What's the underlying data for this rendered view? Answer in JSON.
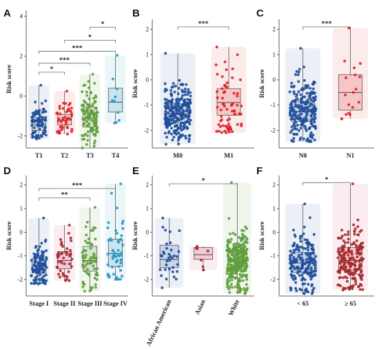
{
  "figure": {
    "panels": [
      {
        "letter": "A",
        "ylabel": "Risk score",
        "ylim": [
          -2.6,
          4.3
        ],
        "yticks": [
          -2,
          0,
          2,
          4
        ],
        "categories": [
          "T1",
          "T2",
          "T3",
          "T4"
        ],
        "colors": [
          "#1f4e9a",
          "#e0212a",
          "#5f9e3c",
          "#2f95c4"
        ],
        "fills": [
          "#c9d4e6",
          "#f6c6c6",
          "#d8e6cc",
          "#c7e4ef"
        ],
        "boxes": [
          {
            "q1": -1.72,
            "median": -1.43,
            "q3": -1.08,
            "lo": -2.15,
            "hi": 0.55,
            "n": 80,
            "spread": 0.55
          },
          {
            "q1": -1.45,
            "median": -1.2,
            "q3": -0.92,
            "lo": -1.9,
            "hi": 0.25,
            "n": 45,
            "spread": 0.6
          },
          {
            "q1": -1.55,
            "median": -1.12,
            "q3": -0.55,
            "lo": -2.6,
            "hi": 1.1,
            "n": 110,
            "spread": 0.65
          },
          {
            "q1": -0.8,
            "median": -0.3,
            "q3": 0.4,
            "lo": -1.35,
            "hi": 2.05,
            "n": 10,
            "spread": 0.35
          }
        ],
        "comparisons": [
          {
            "from": 0,
            "to": 1,
            "label": "*",
            "y": 1.2
          },
          {
            "from": 0,
            "to": 2,
            "label": "***",
            "y": 1.65
          },
          {
            "from": 0,
            "to": 3,
            "label": "***",
            "y": 2.25
          },
          {
            "from": 1,
            "to": 3,
            "label": "*",
            "y": 2.8
          },
          {
            "from": 2,
            "to": 3,
            "label": "*",
            "y": 3.45
          }
        ],
        "rotate_labels": false
      },
      {
        "letter": "B",
        "ylabel": "Risk score",
        "ylim": [
          -2.7,
          2.4
        ],
        "yticks": [
          -2,
          -1,
          0,
          1,
          2
        ],
        "categories": [
          "M0",
          "M1"
        ],
        "colors": [
          "#1f4e9a",
          "#e0212a"
        ],
        "fills": [
          "#c9d4e6",
          "#f6c6c6"
        ],
        "boxes": [
          {
            "q1": -1.7,
            "median": -1.35,
            "q3": -0.95,
            "lo": -2.55,
            "hi": 1.05,
            "n": 260,
            "spread": 0.6
          },
          {
            "q1": -1.4,
            "median": -0.9,
            "q3": -0.35,
            "lo": -2.1,
            "hi": 1.3,
            "n": 70,
            "spread": 0.6
          }
        ],
        "comparisons": [
          {
            "from": 0,
            "to": 1,
            "label": "***",
            "y": 2.1
          }
        ],
        "rotate_labels": false
      },
      {
        "letter": "C",
        "ylabel": "Risk score",
        "ylim": [
          -2.7,
          2.4
        ],
        "yticks": [
          -2,
          -1,
          0,
          1,
          2
        ],
        "categories": [
          "N0",
          "N1"
        ],
        "colors": [
          "#1f4e9a",
          "#e0212a"
        ],
        "fills": [
          "#c9d4e6",
          "#f6c6c6"
        ],
        "boxes": [
          {
            "q1": -1.65,
            "median": -1.25,
            "q3": -0.85,
            "lo": -2.45,
            "hi": 1.25,
            "n": 220,
            "spread": 0.6
          },
          {
            "q1": -1.2,
            "median": -0.5,
            "q3": 0.2,
            "lo": -1.55,
            "hi": 2.05,
            "n": 18,
            "spread": 0.5
          }
        ],
        "comparisons": [
          {
            "from": 0,
            "to": 1,
            "label": "***",
            "y": 2.1
          }
        ],
        "rotate_labels": false
      },
      {
        "letter": "D",
        "ylabel": "Risk score",
        "ylim": [
          -2.7,
          2.4
        ],
        "yticks": [
          -2,
          -1,
          0,
          1,
          2
        ],
        "categories": [
          "Stage I",
          "Stage II",
          "Stage III",
          "Stage IV"
        ],
        "colors": [
          "#1f4e9a",
          "#a52a2a",
          "#5f9e3c",
          "#2f95c4"
        ],
        "fills": [
          "#c9d4e6",
          "#f4c9d8",
          "#d8e6cc",
          "#c7e4ef"
        ],
        "boxes": [
          {
            "q1": -1.72,
            "median": -1.42,
            "q3": -1.1,
            "lo": -2.2,
            "hi": 0.6,
            "n": 110,
            "spread": 0.6
          },
          {
            "q1": -1.55,
            "median": -1.2,
            "q3": -0.82,
            "lo": -2.05,
            "hi": 0.3,
            "n": 45,
            "spread": 0.6
          },
          {
            "q1": -1.65,
            "median": -1.2,
            "q3": -0.6,
            "lo": -2.5,
            "hi": 1.05,
            "n": 70,
            "spread": 0.6
          },
          {
            "q1": -1.45,
            "median": -0.9,
            "q3": -0.3,
            "lo": -2.0,
            "hi": 2.05,
            "n": 55,
            "spread": 0.6
          }
        ],
        "comparisons": [
          {
            "from": 0,
            "to": 2,
            "label": "**",
            "y": 1.45
          },
          {
            "from": 0,
            "to": 3,
            "label": "***",
            "y": 1.85
          }
        ],
        "rotate_labels": false
      },
      {
        "letter": "E",
        "ylabel": "Risk score",
        "ylim": [
          -2.7,
          2.4
        ],
        "yticks": [
          -2,
          -1,
          0,
          1,
          2
        ],
        "categories": [
          "African American",
          "Asian",
          "White"
        ],
        "colors": [
          "#1f4e9a",
          "#a52a2a",
          "#5f9e3c"
        ],
        "fills": [
          "#c9d4e6",
          "#f4c9d8",
          "#d8e6cc"
        ],
        "boxes": [
          {
            "q1": -1.5,
            "median": -1.15,
            "q3": -0.55,
            "lo": -2.35,
            "hi": 0.6,
            "n": 35,
            "spread": 0.6
          },
          {
            "q1": -1.15,
            "median": -0.95,
            "q3": -0.65,
            "lo": -1.6,
            "hi": -0.6,
            "n": 8,
            "spread": 0.6
          },
          {
            "q1": -1.65,
            "median": -1.25,
            "q3": -0.85,
            "lo": -2.6,
            "hi": 2.1,
            "n": 300,
            "spread": 0.6
          }
        ],
        "comparisons": [
          {
            "from": 0,
            "to": 2,
            "label": "*",
            "y": 2.05
          }
        ],
        "rotate_labels": true
      },
      {
        "letter": "F",
        "ylabel": "Risk score",
        "ylim": [
          -2.7,
          2.4
        ],
        "yticks": [
          -2,
          -1,
          0,
          1,
          2
        ],
        "categories": [
          "< 65",
          "≥ 65"
        ],
        "colors": [
          "#1f4e9a",
          "#a52a2a"
        ],
        "fills": [
          "#c9d4e6",
          "#f4c9d8"
        ],
        "boxes": [
          {
            "q1": -1.7,
            "median": -1.3,
            "q3": -0.85,
            "lo": -2.6,
            "hi": 1.2,
            "n": 200,
            "spread": 0.6
          },
          {
            "q1": -1.6,
            "median": -1.2,
            "q3": -0.65,
            "lo": -2.45,
            "hi": 2.05,
            "n": 200,
            "spread": 0.6
          }
        ],
        "comparisons": [
          {
            "from": 0,
            "to": 1,
            "label": "*",
            "y": 2.1
          }
        ],
        "rotate_labels": false
      }
    ]
  },
  "chart_data": [
    {
      "type": "box",
      "panel": "A",
      "ylabel": "Risk score",
      "categories": [
        "T1",
        "T2",
        "T3",
        "T4"
      ],
      "medians": [
        -1.43,
        -1.2,
        -1.12,
        -0.3
      ],
      "q1": [
        -1.72,
        -1.45,
        -1.55,
        -0.8
      ],
      "q3": [
        -1.08,
        -0.92,
        -0.55,
        0.4
      ],
      "ylim": [
        -2.6,
        4.3
      ]
    },
    {
      "type": "box",
      "panel": "B",
      "ylabel": "Risk score",
      "categories": [
        "M0",
        "M1"
      ],
      "medians": [
        -1.35,
        -0.9
      ],
      "q1": [
        -1.7,
        -1.4
      ],
      "q3": [
        -0.95,
        -0.35
      ],
      "ylim": [
        -2.7,
        2.4
      ]
    },
    {
      "type": "box",
      "panel": "C",
      "ylabel": "Risk score",
      "categories": [
        "N0",
        "N1"
      ],
      "medians": [
        -1.25,
        -0.5
      ],
      "q1": [
        -1.65,
        -1.2
      ],
      "q3": [
        -0.85,
        0.2
      ],
      "ylim": [
        -2.7,
        2.4
      ]
    },
    {
      "type": "box",
      "panel": "D",
      "ylabel": "Risk score",
      "categories": [
        "Stage I",
        "Stage II",
        "Stage III",
        "Stage IV"
      ],
      "medians": [
        -1.42,
        -1.2,
        -1.2,
        -0.9
      ],
      "q1": [
        -1.72,
        -1.55,
        -1.65,
        -1.45
      ],
      "q3": [
        -1.1,
        -0.82,
        -0.6,
        -0.3
      ],
      "ylim": [
        -2.7,
        2.4
      ]
    },
    {
      "type": "box",
      "panel": "E",
      "ylabel": "Risk score",
      "categories": [
        "African American",
        "Asian",
        "White"
      ],
      "medians": [
        -1.15,
        -0.95,
        -1.25
      ],
      "q1": [
        -1.5,
        -1.15,
        -1.65
      ],
      "q3": [
        -0.55,
        -0.65,
        -0.85
      ],
      "ylim": [
        -2.7,
        2.4
      ]
    },
    {
      "type": "box",
      "panel": "F",
      "ylabel": "Risk score",
      "categories": [
        "< 65",
        "≥ 65"
      ],
      "medians": [
        -1.3,
        -1.2
      ],
      "q1": [
        -1.7,
        -1.6
      ],
      "q3": [
        -0.85,
        -0.65
      ],
      "ylim": [
        -2.7,
        2.4
      ]
    }
  ]
}
